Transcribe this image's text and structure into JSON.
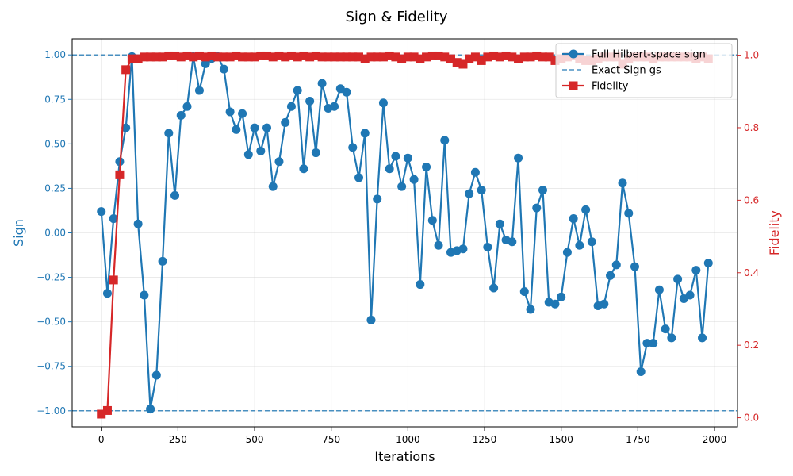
{
  "chart_data": {
    "type": "line",
    "title": "Sign & Fidelity",
    "xlabel": "Iterations",
    "ylabel_left": "Sign",
    "ylabel_right": "Fidelity",
    "xlim": [
      -95,
      2075
    ],
    "ylim_left": [
      -1.09,
      1.09
    ],
    "ylim_right": [
      -0.025,
      1.045
    ],
    "x_ticks": [
      0,
      250,
      500,
      750,
      1000,
      1250,
      1500,
      1750,
      2000
    ],
    "x_tick_labels": [
      "0",
      "250",
      "500",
      "750",
      "1000",
      "1250",
      "1500",
      "1750",
      "2000"
    ],
    "y_left_ticks": [
      -1.0,
      -0.75,
      -0.5,
      -0.25,
      0.0,
      0.25,
      0.5,
      0.75,
      1.0
    ],
    "y_left_tick_labels": [
      "−1.00",
      "−0.75",
      "−0.50",
      "−0.25",
      "0.00",
      "0.25",
      "0.50",
      "0.75",
      "1.00"
    ],
    "y_right_ticks": [
      0.0,
      0.2,
      0.4,
      0.6,
      0.8,
      1.0
    ],
    "y_right_tick_labels": [
      "0.0",
      "0.2",
      "0.4",
      "0.6",
      "0.8",
      "1.0"
    ],
    "grid": true,
    "legend_position": "top-right",
    "colors": {
      "sign": "#1f77b4",
      "fidelity": "#d62728",
      "reference": "#1f77b4"
    },
    "series": [
      {
        "name": "Full Hilbert-space sign",
        "axis": "left",
        "style": "line-circle",
        "x": [
          0,
          20,
          40,
          60,
          80,
          100,
          120,
          140,
          160,
          180,
          200,
          220,
          240,
          260,
          280,
          300,
          320,
          340,
          360,
          380,
          400,
          420,
          440,
          460,
          480,
          500,
          520,
          540,
          560,
          580,
          600,
          620,
          640,
          660,
          680,
          700,
          720,
          740,
          760,
          780,
          800,
          820,
          840,
          860,
          880,
          900,
          920,
          940,
          960,
          980,
          1000,
          1020,
          1040,
          1060,
          1080,
          1100,
          1120,
          1140,
          1160,
          1180,
          1200,
          1220,
          1240,
          1260,
          1280,
          1300,
          1320,
          1340,
          1360,
          1380,
          1400,
          1420,
          1440,
          1460,
          1480,
          1500,
          1520,
          1540,
          1560,
          1580,
          1600,
          1620,
          1640,
          1660,
          1680,
          1700,
          1720,
          1740,
          1760,
          1780,
          1800,
          1820,
          1840,
          1860,
          1880,
          1900,
          1920,
          1940,
          1960,
          1980
        ],
        "y": [
          0.12,
          -0.34,
          0.08,
          0.4,
          0.59,
          0.99,
          0.05,
          -0.35,
          -0.99,
          -0.8,
          -0.16,
          0.56,
          0.21,
          0.66,
          0.71,
          0.99,
          0.8,
          0.95,
          0.98,
          0.99,
          0.92,
          0.68,
          0.58,
          0.67,
          0.44,
          0.59,
          0.46,
          0.59,
          0.26,
          0.4,
          0.62,
          0.71,
          0.8,
          0.36,
          0.74,
          0.45,
          0.84,
          0.7,
          0.71,
          0.81,
          0.79,
          0.48,
          0.31,
          0.56,
          -0.49,
          0.19,
          0.73,
          0.36,
          0.43,
          0.26,
          0.42,
          0.3,
          -0.29,
          0.37,
          0.07,
          -0.07,
          0.52,
          -0.11,
          -0.1,
          -0.09,
          0.22,
          0.34,
          0.24,
          -0.08,
          -0.31,
          0.05,
          -0.04,
          -0.05,
          0.42,
          -0.33,
          -0.43,
          0.14,
          0.24,
          -0.39,
          -0.4,
          -0.36,
          -0.11,
          0.08,
          -0.07,
          0.13,
          -0.05,
          -0.41,
          -0.4,
          -0.24,
          -0.18,
          0.28,
          0.11,
          -0.19,
          -0.78,
          -0.62,
          -0.62,
          -0.32,
          -0.54,
          -0.59,
          -0.26,
          -0.37,
          -0.35,
          -0.21,
          -0.59,
          -0.17
        ]
      },
      {
        "name": "Exact Sign gs",
        "axis": "left",
        "style": "dashed-hline",
        "values": [
          1.0,
          -1.0
        ]
      },
      {
        "name": "Fidelity",
        "axis": "right",
        "style": "line-square",
        "x": [
          0,
          20,
          40,
          60,
          80,
          100,
          120,
          140,
          160,
          180,
          200,
          220,
          240,
          260,
          280,
          300,
          320,
          340,
          360,
          380,
          400,
          420,
          440,
          460,
          480,
          500,
          520,
          540,
          560,
          580,
          600,
          620,
          640,
          660,
          680,
          700,
          720,
          740,
          760,
          780,
          800,
          820,
          840,
          860,
          880,
          900,
          920,
          940,
          960,
          980,
          1000,
          1020,
          1040,
          1060,
          1080,
          1100,
          1120,
          1140,
          1160,
          1180,
          1200,
          1220,
          1240,
          1260,
          1280,
          1300,
          1320,
          1340,
          1360,
          1380,
          1400,
          1420,
          1440,
          1460,
          1480,
          1500,
          1520,
          1540,
          1560,
          1580,
          1600,
          1620,
          1640,
          1660,
          1680,
          1700,
          1720,
          1740,
          1760,
          1780,
          1800,
          1820,
          1840,
          1860,
          1880,
          1900,
          1920,
          1940,
          1960,
          1980
        ],
        "y": [
          0.01,
          0.02,
          0.38,
          0.67,
          0.96,
          0.99,
          0.99,
          0.995,
          0.995,
          0.995,
          0.995,
          0.998,
          0.998,
          0.995,
          0.998,
          0.995,
          0.998,
          0.995,
          0.998,
          0.995,
          0.995,
          0.995,
          0.998,
          0.995,
          0.995,
          0.995,
          0.998,
          0.998,
          0.995,
          0.998,
          0.995,
          0.998,
          0.995,
          0.998,
          0.995,
          0.998,
          0.995,
          0.995,
          0.995,
          0.995,
          0.995,
          0.995,
          0.995,
          0.99,
          0.995,
          0.995,
          0.995,
          0.998,
          0.995,
          0.99,
          0.995,
          0.995,
          0.99,
          0.995,
          0.998,
          0.998,
          0.995,
          0.99,
          0.98,
          0.975,
          0.99,
          0.995,
          0.985,
          0.995,
          0.998,
          0.995,
          0.998,
          0.995,
          0.99,
          0.995,
          0.995,
          0.998,
          0.995,
          0.995,
          0.985,
          0.99,
          0.995,
          0.998,
          0.99,
          0.985,
          0.985,
          0.99,
          0.995,
          0.995,
          0.995,
          0.975,
          0.99,
          0.995,
          0.995,
          0.995,
          0.99,
          0.995,
          0.995,
          0.995,
          0.995,
          0.995,
          0.995,
          0.99,
          0.995,
          0.99
        ]
      }
    ]
  }
}
